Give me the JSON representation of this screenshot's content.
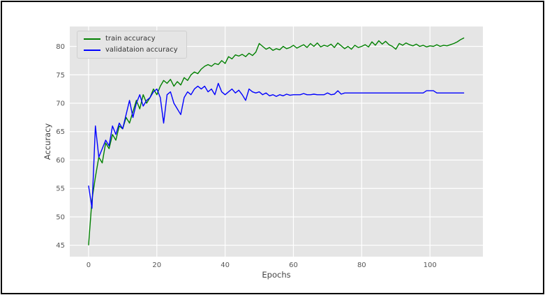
{
  "colors": {
    "plot_background": "#e5e5e5",
    "grid": "#ffffff",
    "tick_label": "#555555",
    "frame": "#000000",
    "train_line": "#008000",
    "validation_line": "#0000ff"
  },
  "chart_data": {
    "type": "line",
    "title": "",
    "xlabel": "Epochs",
    "ylabel": "Accuracy",
    "xlim": [
      -5.5,
      115.5
    ],
    "ylim": [
      43,
      83.5
    ],
    "x_ticks": [
      0,
      20,
      40,
      60,
      80,
      100
    ],
    "y_ticks": [
      45,
      50,
      55,
      60,
      65,
      70,
      75,
      80
    ],
    "grid": true,
    "legend_position": "upper left",
    "x_range": [
      0,
      110
    ],
    "series": [
      {
        "name": "train accuracy",
        "color": "#008000",
        "values": [
          45,
          53,
          57,
          60.5,
          59.5,
          63,
          62,
          64.5,
          63.5,
          66,
          65.5,
          67.5,
          66.5,
          68.5,
          70.5,
          69,
          71.5,
          70,
          71,
          72.5,
          71.5,
          73,
          74,
          73.5,
          74.2,
          73,
          73.8,
          73.2,
          74.5,
          74,
          75,
          75.5,
          75.2,
          76,
          76.5,
          76.8,
          76.5,
          77,
          76.8,
          77.5,
          77,
          78.2,
          77.8,
          78.5,
          78.3,
          78.6,
          78.2,
          78.8,
          78.4,
          79,
          80.5,
          80,
          79.5,
          79.8,
          79.3,
          79.6,
          79.4,
          80,
          79.6,
          79.8,
          80.2,
          79.7,
          80,
          80.3,
          79.8,
          80.5,
          80,
          80.6,
          79.9,
          80.2,
          80,
          80.4,
          79.8,
          80.6,
          80.1,
          79.6,
          80,
          79.5,
          80.2,
          79.8,
          80,
          80.3,
          79.9,
          80.8,
          80.2,
          81,
          80.4,
          80.9,
          80.3,
          80,
          79.5,
          80.5,
          80.2,
          80.6,
          80.3,
          80.1,
          80.4,
          80,
          80.2,
          79.9,
          80.1,
          80,
          80.3,
          80,
          80.2,
          80.1,
          80.3,
          80.5,
          80.8,
          81.2,
          81.5
        ]
      },
      {
        "name": "validataion accuracy",
        "color": "#0000ff",
        "values": [
          55.5,
          51.5,
          66,
          60.5,
          62,
          63.5,
          62.5,
          66,
          64.5,
          66.5,
          65.5,
          68,
          70.5,
          67.5,
          70,
          71.5,
          69.5,
          70.5,
          71,
          72,
          72.5,
          71,
          66.5,
          71.5,
          72,
          70,
          69,
          68,
          71,
          72,
          71.5,
          72.5,
          73,
          72.5,
          73,
          72,
          72.5,
          71.5,
          73.5,
          72,
          71.5,
          72,
          72.5,
          71.8,
          72.3,
          71.5,
          70.5,
          72.5,
          72,
          71.8,
          72,
          71.5,
          71.8,
          71.3,
          71.5,
          71.2,
          71.5,
          71.3,
          71.6,
          71.4,
          71.5,
          71.5,
          71.5,
          71.7,
          71.5,
          71.5,
          71.6,
          71.5,
          71.5,
          71.5,
          71.8,
          71.5,
          71.6,
          72.2,
          71.6,
          71.8,
          71.8,
          71.8,
          71.8,
          71.8,
          71.8,
          71.8,
          71.8,
          71.8,
          71.8,
          71.8,
          71.8,
          71.8,
          71.8,
          71.8,
          71.8,
          71.8,
          71.8,
          71.8,
          71.8,
          71.8,
          71.8,
          71.8,
          71.8,
          72.2,
          72.2,
          72.2,
          71.8,
          71.8,
          71.8,
          71.8,
          71.8,
          71.8,
          71.8,
          71.8,
          71.8
        ]
      }
    ]
  }
}
